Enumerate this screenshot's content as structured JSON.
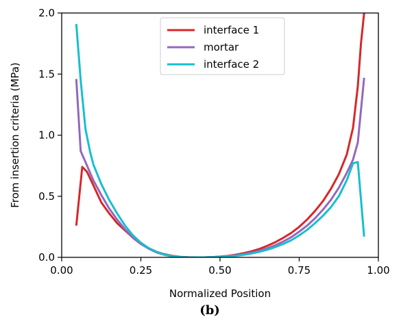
{
  "chart_data": {
    "type": "line",
    "xlabel": "Normalized Position",
    "ylabel": "From insertion criteria (MPa)",
    "xlim": [
      0.0,
      1.0
    ],
    "ylim": [
      0.0,
      2.0
    ],
    "xticks": [
      0.0,
      0.25,
      0.5,
      0.75,
      1.0
    ],
    "xtick_labels": [
      "0.00",
      "0.25",
      "0.50",
      "0.75",
      "1.00"
    ],
    "yticks": [
      0.0,
      0.5,
      1.0,
      1.5,
      2.0
    ],
    "ytick_labels": [
      "0.0",
      "0.5",
      "1.0",
      "1.5",
      "2.0"
    ],
    "grid": false,
    "legend_position": "top-center",
    "panel_label": "(b)",
    "series": [
      {
        "name": "interface 1",
        "color": "#d62728",
        "x": [
          0.046,
          0.065,
          0.08,
          0.1,
          0.125,
          0.15,
          0.175,
          0.2,
          0.225,
          0.25,
          0.275,
          0.3,
          0.325,
          0.35,
          0.375,
          0.4,
          0.425,
          0.45,
          0.475,
          0.5,
          0.525,
          0.55,
          0.575,
          0.6,
          0.625,
          0.65,
          0.675,
          0.7,
          0.725,
          0.75,
          0.775,
          0.8,
          0.825,
          0.85,
          0.875,
          0.9,
          0.92,
          0.935,
          0.945,
          0.955
        ],
        "y": [
          0.26,
          0.74,
          0.7,
          0.59,
          0.45,
          0.36,
          0.28,
          0.22,
          0.16,
          0.11,
          0.075,
          0.045,
          0.025,
          0.012,
          0.004,
          0.001,
          0.0,
          0.0,
          0.002,
          0.006,
          0.012,
          0.022,
          0.035,
          0.05,
          0.07,
          0.095,
          0.125,
          0.16,
          0.2,
          0.25,
          0.31,
          0.38,
          0.46,
          0.56,
          0.68,
          0.84,
          1.06,
          1.4,
          1.75,
          2.0
        ]
      },
      {
        "name": "mortar",
        "color": "#9467bd",
        "x": [
          0.046,
          0.06,
          0.075,
          0.1,
          0.125,
          0.15,
          0.175,
          0.2,
          0.225,
          0.25,
          0.275,
          0.3,
          0.325,
          0.35,
          0.375,
          0.4,
          0.425,
          0.45,
          0.475,
          0.5,
          0.525,
          0.55,
          0.575,
          0.6,
          0.625,
          0.65,
          0.675,
          0.7,
          0.725,
          0.75,
          0.775,
          0.8,
          0.825,
          0.85,
          0.875,
          0.9,
          0.92,
          0.935,
          0.955
        ],
        "y": [
          1.46,
          0.87,
          0.78,
          0.63,
          0.51,
          0.4,
          0.31,
          0.23,
          0.16,
          0.11,
          0.07,
          0.04,
          0.02,
          0.008,
          0.002,
          0.0,
          0.0,
          0.0,
          0.002,
          0.005,
          0.01,
          0.017,
          0.027,
          0.04,
          0.055,
          0.075,
          0.1,
          0.13,
          0.165,
          0.21,
          0.26,
          0.32,
          0.39,
          0.47,
          0.57,
          0.69,
          0.8,
          0.94,
          1.47
        ]
      },
      {
        "name": "interface 2",
        "color": "#17becf",
        "x": [
          0.046,
          0.06,
          0.075,
          0.09,
          0.1,
          0.125,
          0.15,
          0.175,
          0.2,
          0.225,
          0.25,
          0.275,
          0.3,
          0.325,
          0.35,
          0.375,
          0.4,
          0.425,
          0.45,
          0.475,
          0.5,
          0.525,
          0.55,
          0.575,
          0.6,
          0.625,
          0.65,
          0.675,
          0.7,
          0.725,
          0.75,
          0.775,
          0.8,
          0.825,
          0.85,
          0.875,
          0.9,
          0.92,
          0.935,
          0.955
        ],
        "y": [
          1.91,
          1.45,
          1.05,
          0.86,
          0.76,
          0.6,
          0.47,
          0.36,
          0.26,
          0.18,
          0.12,
          0.075,
          0.043,
          0.022,
          0.009,
          0.002,
          0.0,
          0.0,
          0.0,
          0.001,
          0.003,
          0.007,
          0.013,
          0.021,
          0.032,
          0.046,
          0.063,
          0.085,
          0.11,
          0.14,
          0.18,
          0.225,
          0.28,
          0.34,
          0.41,
          0.5,
          0.63,
          0.77,
          0.78,
          0.17
        ]
      }
    ]
  }
}
